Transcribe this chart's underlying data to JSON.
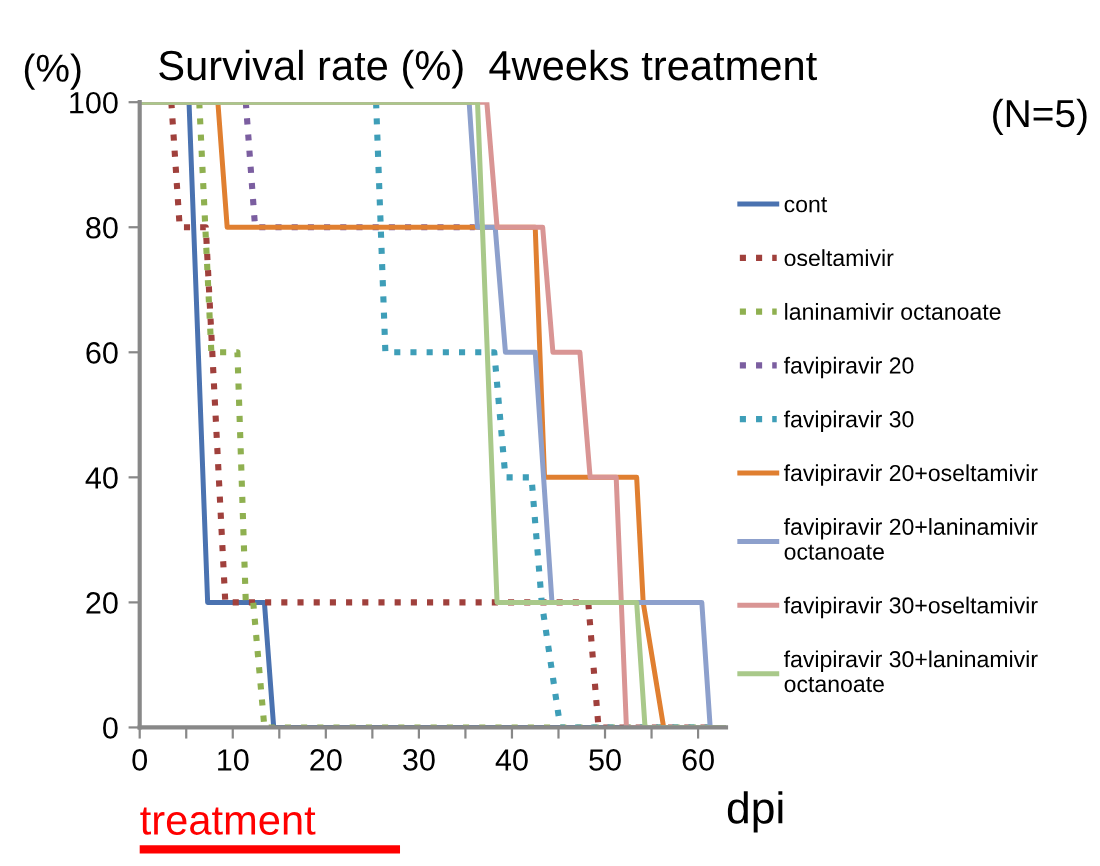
{
  "chart_data": {
    "type": "line",
    "title": "Survival rate (%)  4weeks treatment",
    "ylabel": "(%)",
    "xlabel": "dpi",
    "annotations": [
      "(N=5)",
      "treatment"
    ],
    "xlim": [
      0,
      63
    ],
    "xticks": [
      0,
      {
        "value": 5,
        "label": null
      },
      10,
      {
        "value": 15,
        "label": null
      },
      20,
      {
        "value": 25,
        "label": null
      },
      30,
      {
        "value": 35,
        "label": null
      },
      40,
      {
        "value": 45,
        "label": null
      },
      50,
      {
        "value": 55,
        "label": null
      },
      60
    ],
    "ylim": [
      0,
      100
    ],
    "yticks": [
      0,
      20,
      40,
      60,
      80,
      100
    ],
    "grid": false,
    "legend": "right",
    "marker": "none",
    "series": [
      {
        "name": "cont",
        "color": "#4a72b0",
        "line_style": "solid",
        "x": [
          0,
          5.3,
          7.3,
          13.4,
          14.4,
          62
        ],
        "values": [
          100,
          100,
          20,
          20,
          0,
          0
        ]
      },
      {
        "name": "oseltamivir",
        "color": "#a0403c",
        "line_style": "dotted",
        "x": [
          3.4,
          4.3,
          7.1,
          9.2,
          48.2,
          49.3,
          62
        ],
        "values": [
          100,
          80,
          80,
          20,
          20,
          0,
          0
        ]
      },
      {
        "name": "laninamivir octanoate",
        "color": "#8fb050",
        "line_style": "dotted",
        "x": [
          6.4,
          7.7,
          10.5,
          11.4,
          12.2,
          13.4,
          62
        ],
        "values": [
          100,
          60,
          60,
          20,
          20,
          0,
          0
        ]
      },
      {
        "name": "favipiravir 20",
        "color": "#7b5ea0",
        "line_style": "dotted",
        "x": [
          11.4,
          12.4,
          36
        ],
        "values": [
          100,
          80,
          80
        ]
      },
      {
        "name": "favipiravir 30",
        "color": "#3e9eb8",
        "line_style": "dotted",
        "x": [
          25.4,
          26.4,
          38.1,
          39.3,
          42.1,
          43.2,
          45.2,
          62
        ],
        "values": [
          100,
          60,
          60,
          40,
          40,
          20,
          0,
          0
        ]
      },
      {
        "name": "favipiravir 20+oseltamivir",
        "color": "#e07f30",
        "line_style": "solid",
        "x": [
          8.4,
          9.4,
          42.5,
          43.5,
          53.4,
          54.1,
          56.3,
          62
        ],
        "values": [
          100,
          80,
          80,
          40,
          40,
          20,
          0,
          0
        ]
      },
      {
        "name": "favipiravir 20+laninamivir\noctanoate",
        "color": "#8da0cc",
        "line_style": "solid",
        "x": [
          0,
          35.4,
          36.3,
          38.2,
          39.3,
          42.5,
          44.3,
          60.4,
          61.3,
          62
        ],
        "values": [
          100,
          100,
          80,
          80,
          60,
          60,
          20,
          20,
          0,
          0
        ]
      },
      {
        "name": "favipiravir 30+oseltamivir",
        "color": "#d99594",
        "line_style": "solid",
        "x": [
          0,
          37.3,
          38.4,
          43.3,
          44.4,
          47.3,
          48.4,
          51.2,
          52.3,
          62
        ],
        "values": [
          100,
          100,
          80,
          80,
          60,
          60,
          40,
          40,
          0,
          0
        ]
      },
      {
        "name": "favipiravir 30+laninamivir\noctanoate",
        "color": "#a9c98a",
        "line_style": "solid",
        "x": [
          0,
          36.3,
          38.4,
          53.4,
          54.3,
          63
        ],
        "values": [
          100,
          100,
          20,
          20,
          0,
          0
        ]
      }
    ]
  }
}
